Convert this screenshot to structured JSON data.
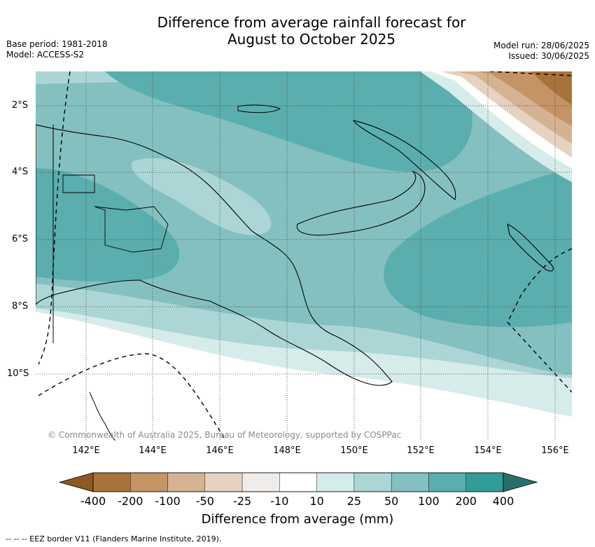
{
  "header": {
    "title_line1": "Difference from average rainfall forecast for",
    "title_line2": "August to October 2025",
    "base_period": "Base period: 1981-2018",
    "model": "Model: ACCESS-S2",
    "model_run": "Model run: 28/06/2025",
    "issued": "Issued: 30/06/2025"
  },
  "map": {
    "lat_labels": [
      "2°S",
      "4°S",
      "6°S",
      "8°S",
      "10°S"
    ],
    "lon_labels": [
      "142°E",
      "144°E",
      "146°E",
      "148°E",
      "150°E",
      "152°E",
      "154°E",
      "156°E"
    ],
    "credit": "© Commonwealth of Australia 2025, Bureau of Meteorology, supported by COSPPac"
  },
  "legend": {
    "ticks": [
      "-400",
      "-200",
      "-100",
      "-50",
      "-25",
      "-10",
      "10",
      "25",
      "50",
      "100",
      "200",
      "400"
    ],
    "colors": [
      "#8c5a22",
      "#a8733a",
      "#c49467",
      "#d5b291",
      "#e6d2c1",
      "#f0ecea",
      "#ffffff",
      "#d6ecea",
      "#acd6d5",
      "#85c0c0",
      "#5baeae",
      "#329c98",
      "#286f6c"
    ],
    "title": "Difference from average (mm)"
  },
  "footer": "-- -- -- EEZ border V11 (Flanders Marine Institute, 2019)."
}
